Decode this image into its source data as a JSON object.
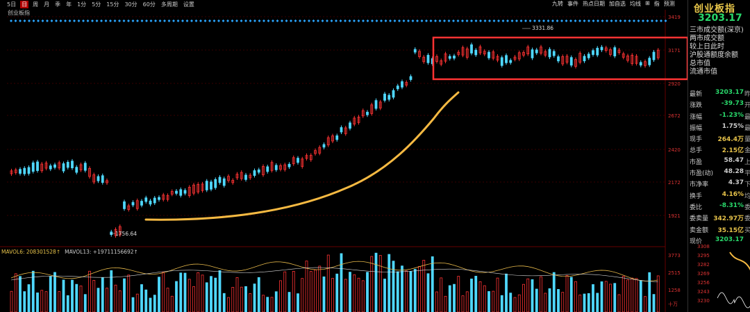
{
  "toolbar": {
    "periods": [
      "5日",
      "日",
      "周",
      "月",
      "季",
      "年",
      "1分",
      "5分",
      "15分",
      "30分",
      "60分",
      "多周期",
      "设置"
    ],
    "active": "日",
    "right_tools": [
      "九转",
      "事件",
      "热点日期",
      "加自选",
      "均线",
      "⊞",
      "指",
      "预测"
    ]
  },
  "chart_header": {
    "index_name": "创业板指"
  },
  "price_axis": [
    "3419",
    "3171",
    "2920",
    "2672",
    "2420",
    "2172",
    "1921"
  ],
  "volume_axis": [
    "3773",
    "2515",
    "1258",
    "十万"
  ],
  "annotations": {
    "high": "3331.86",
    "low": "1756.64"
  },
  "volume_header": {
    "label": "MAVOL6: 208301528↑",
    "label2": "MAVOL13: +19711156692↑"
  },
  "colors": {
    "up": "#ff3333",
    "down": "#4fd8ff",
    "ma": "#e6b84a",
    "box": "#ff3333",
    "curve": "#f5b942"
  },
  "right_panel": {
    "title": "创业板指",
    "price": "3203.17",
    "dropdown": [
      "三市成交额(深京)",
      "两市成交额",
      "较上日此时",
      "沪股通额度余额",
      "总市值",
      "流通市值"
    ],
    "stats": [
      {
        "label": "最新",
        "value": "3203.17",
        "extra": "昨",
        "cls": "g"
      },
      {
        "label": "涨跌",
        "value": "-39.73",
        "extra": "开",
        "cls": "g"
      },
      {
        "label": "涨幅",
        "value": "-1.23%",
        "extra": "最",
        "cls": "g"
      },
      {
        "label": "振幅",
        "value": "1.75%",
        "extra": "最",
        "cls": ""
      },
      {
        "label": "现手",
        "value": "264.4万",
        "extra": "量",
        "cls": "y"
      },
      {
        "label": "总手",
        "value": "2.15亿",
        "extra": "金",
        "cls": "y"
      },
      {
        "label": "市盈",
        "value": "58.47",
        "extra": "上",
        "cls": ""
      },
      {
        "label": "市盈(动)",
        "value": "48.28",
        "extra": "平",
        "cls": ""
      },
      {
        "label": "市净率",
        "value": "4.37",
        "extra": "下",
        "cls": ""
      },
      {
        "label": "换手",
        "value": "4.16%",
        "extra": "均",
        "cls": "y"
      },
      {
        "label": "委比",
        "value": "-8.31%",
        "extra": "委",
        "cls": "g"
      },
      {
        "label": "委卖量",
        "value": "342.97万",
        "extra": "委",
        "cls": "y"
      },
      {
        "label": "卖金额",
        "value": "35.15亿",
        "extra": "买",
        "cls": "y"
      },
      {
        "label": "现价",
        "value": "3203.17",
        "extra": "",
        "cls": "g"
      }
    ],
    "mini_axis": [
      "3308",
      "3295",
      "3282",
      "3269",
      "3256",
      "3243",
      "3230"
    ]
  }
}
